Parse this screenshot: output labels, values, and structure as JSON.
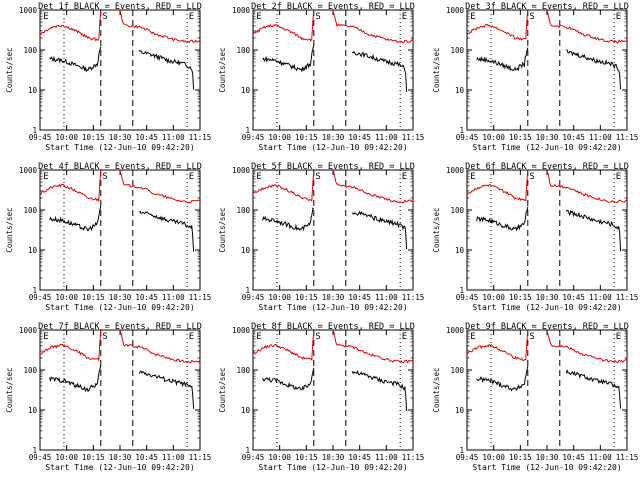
{
  "chart_data": {
    "type": "line",
    "ylabel": "Counts/sec",
    "xlabel": "Start Time (12-Jun-10 09:42:20)",
    "ylim": [
      1,
      1000
    ],
    "y_scale": "log",
    "y_tick_labels": [
      "1",
      "10",
      "100",
      "1000"
    ],
    "x_tick_labels": [
      "09:45",
      "10:00",
      "10:15",
      "10:30",
      "10:45",
      "11:00",
      "11:15"
    ],
    "series_colors": {
      "Events": "#000000",
      "LLD": "#e00000"
    },
    "markers": {
      "E_left": "E",
      "S": "S",
      "E_right": "E"
    },
    "panels": [
      {
        "title": "Det 1f BLACK = Events, RED = LLD"
      },
      {
        "title": "Det 2f BLACK = Events, RED = LLD"
      },
      {
        "title": "Det 3f BLACK = Events, RED = LLD"
      },
      {
        "title": "Det 4f BLACK = Events, RED = LLD"
      },
      {
        "title": "Det 5f BLACK = Events, RED = LLD"
      },
      {
        "title": "Det 6f BLACK = Events, RED = LLD"
      },
      {
        "title": "Det 7f BLACK = Events, RED = LLD"
      },
      {
        "title": "Det 8f BLACK = Events, RED = LLD"
      },
      {
        "title": "Det 9f BLACK = Events, RED = LLD"
      }
    ],
    "events_shape": [
      [
        0,
        50
      ],
      [
        0.07,
        60
      ],
      [
        0.14,
        55
      ],
      [
        0.22,
        42
      ],
      [
        0.3,
        32
      ],
      [
        0.36,
        45
      ],
      [
        0.38,
        120
      ]
    ],
    "events_shape_after": [
      [
        0.62,
        90
      ],
      [
        0.7,
        75
      ],
      [
        0.8,
        55
      ],
      [
        0.9,
        45
      ],
      [
        0.95,
        35
      ],
      [
        0.96,
        10
      ]
    ],
    "lld_shape": [
      [
        0,
        250
      ],
      [
        0.08,
        380
      ],
      [
        0.14,
        420
      ],
      [
        0.2,
        330
      ],
      [
        0.3,
        200
      ],
      [
        0.37,
        180
      ],
      [
        0.38,
        1000
      ]
    ],
    "lld_shape_after": [
      [
        0.5,
        1000
      ],
      [
        0.52,
        420
      ],
      [
        0.62,
        380
      ],
      [
        0.72,
        250
      ],
      [
        0.84,
        180
      ],
      [
        0.92,
        160
      ],
      [
        1,
        170
      ]
    ]
  }
}
